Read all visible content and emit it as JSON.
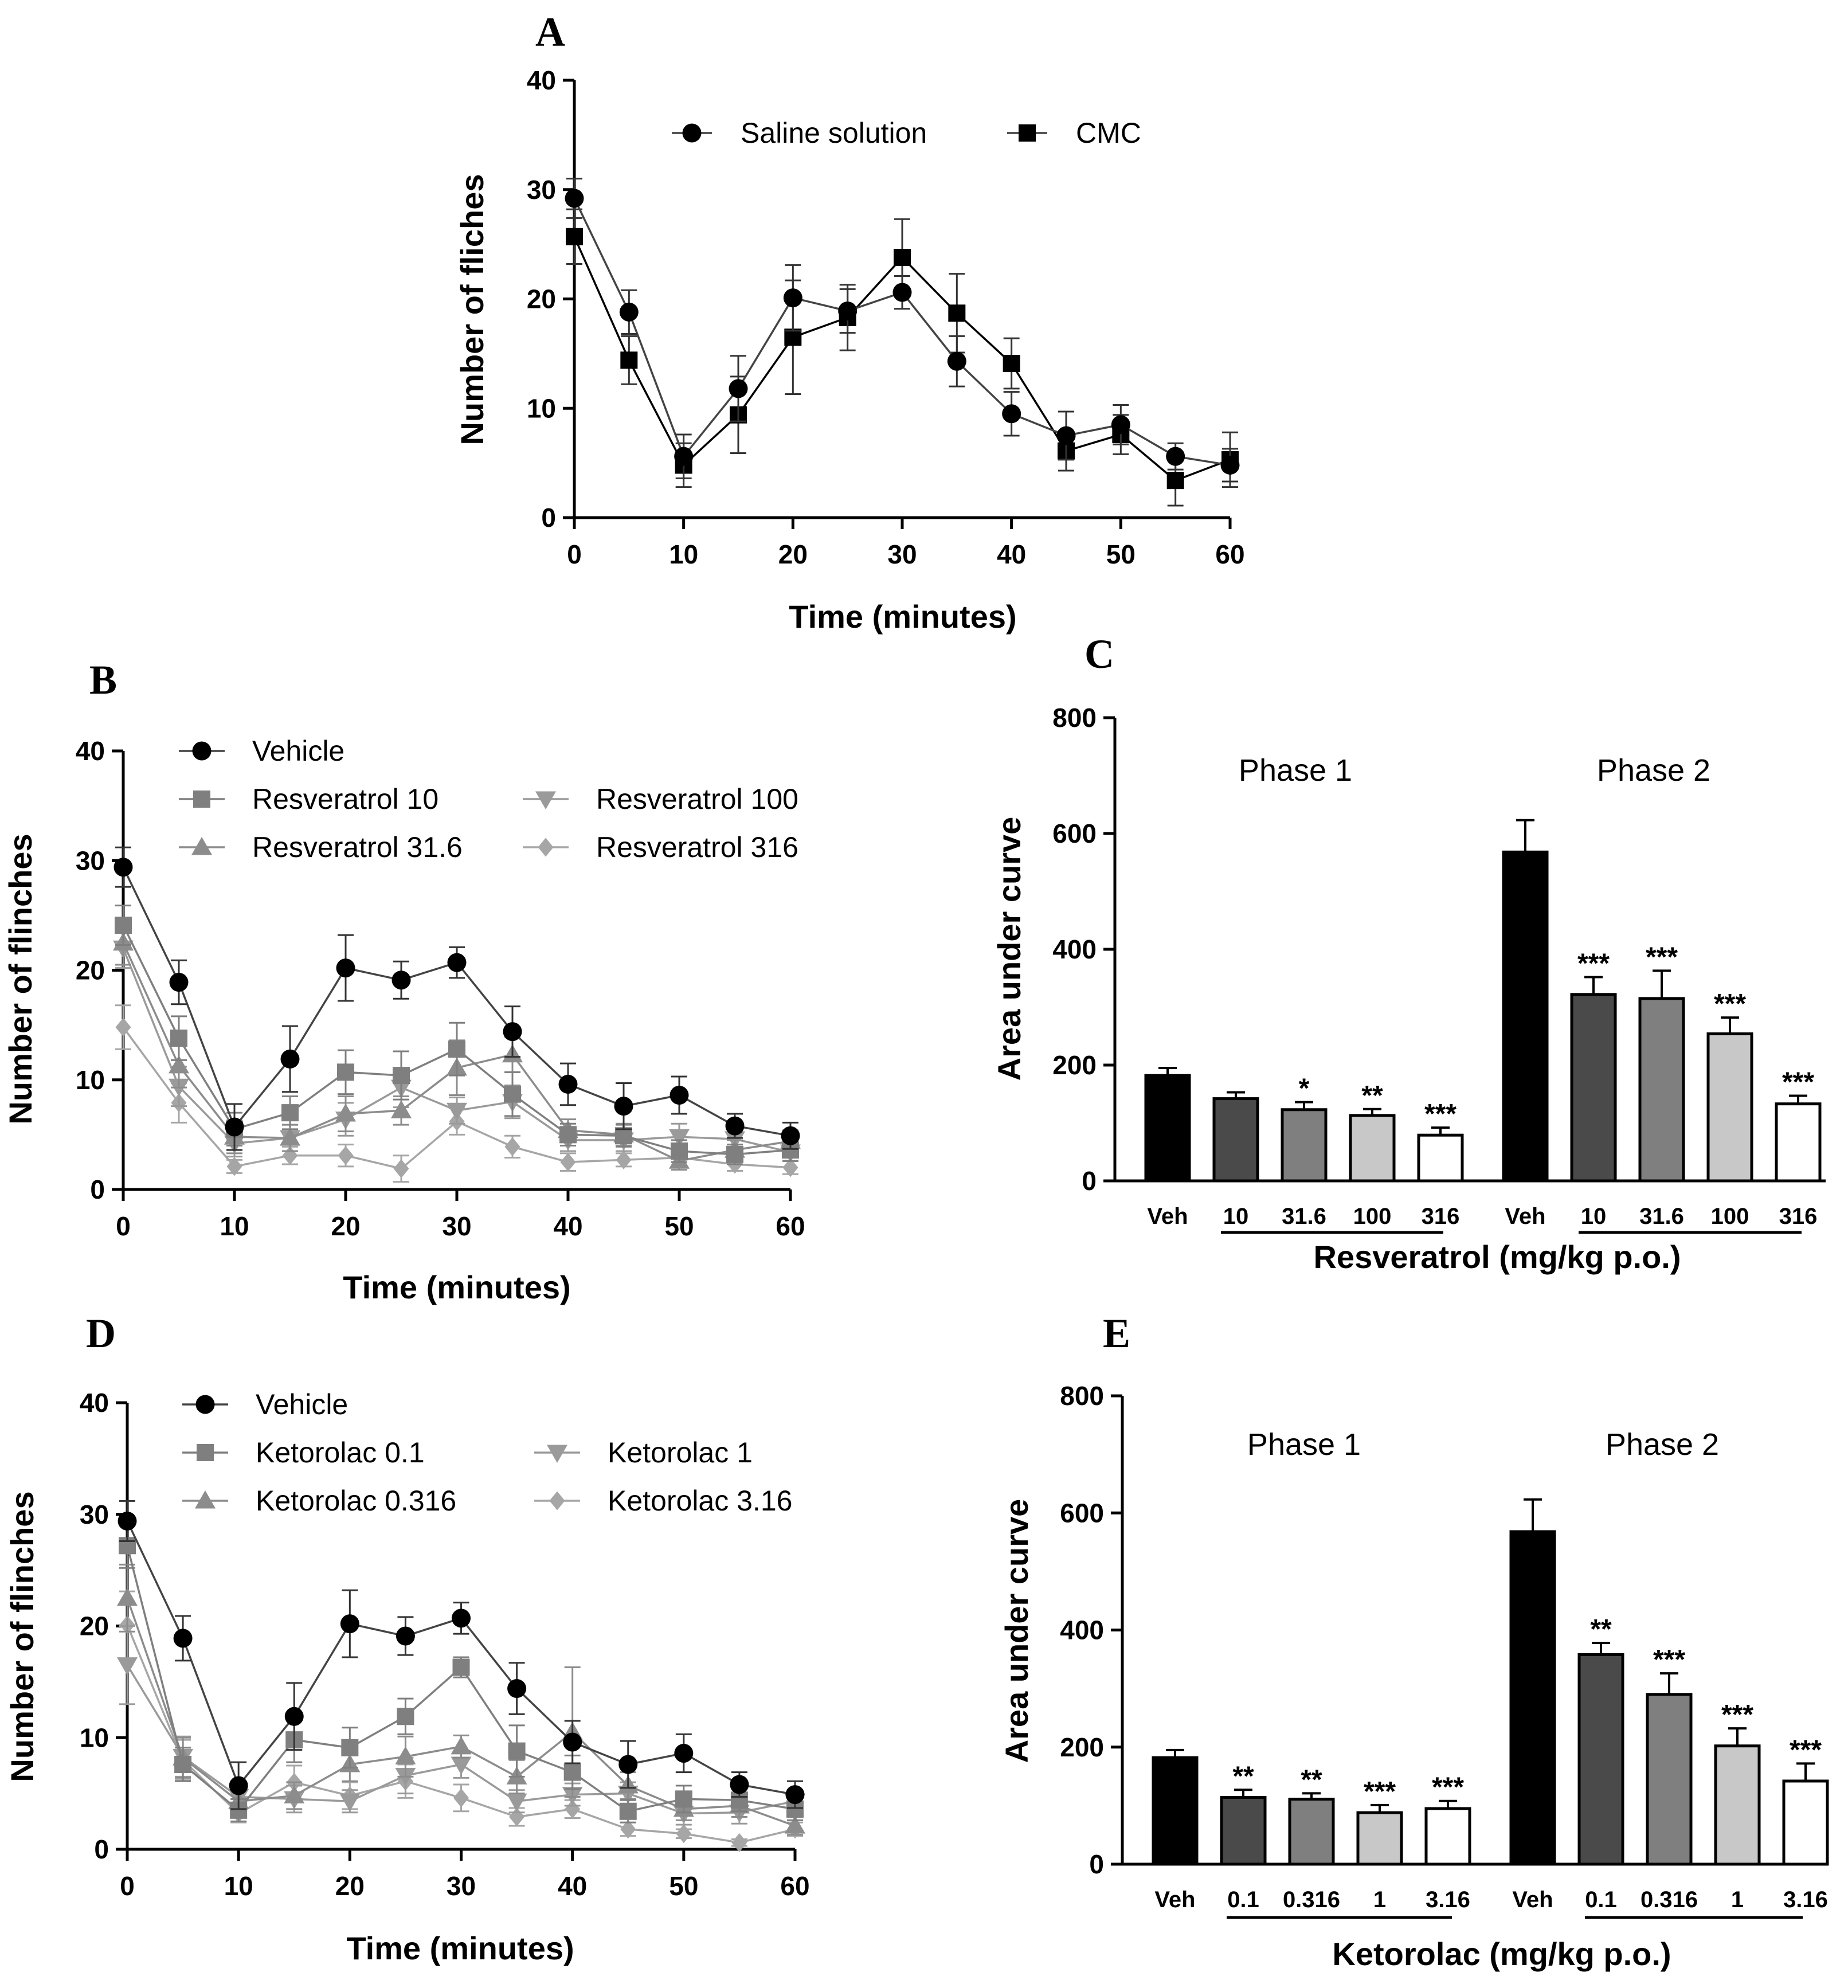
{
  "colors": {
    "black": "#000000",
    "dark_gray": "#4a4a4a",
    "mid_gray": "#7f7f7f",
    "light_gray": "#a6a6a6",
    "lighter_gray": "#c8c8c8",
    "white": "#ffffff",
    "line_gray": "#6e6e6e"
  },
  "chart_data": [
    {
      "panel": "A",
      "type": "line",
      "xlabel": "Time (minutes)",
      "ylabel": "Number of fliches",
      "xlim": [
        0,
        60
      ],
      "ylim": [
        0,
        40
      ],
      "xticks": [
        "0",
        "10",
        "20",
        "30",
        "40",
        "50",
        "60"
      ],
      "yticks": [
        "0",
        "10",
        "20",
        "30",
        "40"
      ],
      "x": [
        0,
        5,
        10,
        15,
        20,
        25,
        30,
        35,
        40,
        45,
        50,
        55,
        60
      ],
      "legend_position": "top",
      "series": [
        {
          "name": "Saline solution",
          "marker": "circle",
          "color": "#000000",
          "values": [
            29.2,
            18.8,
            5.6,
            11.8,
            20.1,
            18.9,
            20.6,
            14.3,
            9.5,
            7.5,
            8.5,
            5.6,
            4.8
          ],
          "errors": [
            1.8,
            2.0,
            2.0,
            3.0,
            3.0,
            2.0,
            1.5,
            2.3,
            2.0,
            2.2,
            1.8,
            1.2,
            1.5
          ]
        },
        {
          "name": "CMC",
          "marker": "square",
          "color": "#000000",
          "values": [
            25.7,
            14.4,
            4.8,
            9.4,
            16.5,
            18.3,
            23.8,
            18.7,
            14.1,
            6.1,
            7.6,
            3.4,
            5.3
          ],
          "errors": [
            2.5,
            2.2,
            2.0,
            3.5,
            5.2,
            3.0,
            3.5,
            3.6,
            2.3,
            1.8,
            1.8,
            2.3,
            2.5
          ]
        }
      ]
    },
    {
      "panel": "B",
      "type": "line",
      "xlabel": "Time (minutes)",
      "ylabel": "Number of flinches",
      "xlim": [
        0,
        60
      ],
      "ylim": [
        0,
        40
      ],
      "xticks": [
        "0",
        "10",
        "20",
        "30",
        "40",
        "50",
        "60"
      ],
      "yticks": [
        "0",
        "10",
        "20",
        "30",
        "40"
      ],
      "x": [
        0,
        5,
        10,
        15,
        20,
        25,
        30,
        35,
        40,
        45,
        50,
        55,
        60
      ],
      "legend_position": "top",
      "series": [
        {
          "name": "Vehicle",
          "marker": "circle",
          "color": "#000000",
          "values": [
            29.4,
            18.9,
            5.7,
            11.9,
            20.2,
            19.1,
            20.7,
            14.4,
            9.6,
            7.6,
            8.6,
            5.8,
            4.9
          ],
          "errors": [
            1.8,
            2.0,
            2.1,
            3.0,
            3.0,
            1.7,
            1.4,
            2.3,
            1.9,
            2.1,
            1.7,
            1.1,
            1.2
          ]
        },
        {
          "name": "Resveratrol 10",
          "marker": "square",
          "color": "#7f7f7f",
          "values": [
            24.1,
            13.8,
            5.5,
            7.0,
            10.7,
            10.4,
            12.8,
            8.7,
            5.0,
            4.9,
            3.5,
            3.2,
            3.6
          ],
          "errors": [
            1.8,
            2.0,
            1.5,
            1.5,
            2.0,
            2.2,
            2.4,
            2.0,
            1.0,
            1.0,
            1.0,
            0.9,
            1.0
          ]
        },
        {
          "name": "Resveratrol 31.6",
          "marker": "triangle-up",
          "color": "#8c8c8c",
          "values": [
            22.5,
            11.3,
            4.8,
            4.7,
            6.9,
            7.2,
            11.1,
            12.3,
            5.4,
            5.0,
            2.6,
            3.6,
            4.4
          ],
          "errors": [
            2.0,
            2.0,
            1.5,
            1.2,
            1.6,
            1.3,
            2.5,
            1.6,
            1.0,
            1.0,
            0.8,
            0.9,
            1.0
          ]
        },
        {
          "name": "Resveratrol 100",
          "marker": "triangle-down",
          "color": "#9a9a9a",
          "values": [
            22.0,
            9.4,
            4.2,
            4.7,
            6.4,
            9.3,
            7.2,
            8.0,
            4.5,
            4.5,
            4.8,
            4.6,
            3.4
          ],
          "errors": [
            1.8,
            1.8,
            1.2,
            1.2,
            1.5,
            1.8,
            1.2,
            1.5,
            1.0,
            1.0,
            1.2,
            1.0,
            0.8
          ]
        },
        {
          "name": "Resveratrol 316",
          "marker": "diamond",
          "color": "#a6a6a6",
          "values": [
            14.8,
            7.9,
            2.1,
            3.1,
            3.1,
            1.9,
            6.2,
            3.9,
            2.5,
            2.7,
            2.9,
            2.3,
            2.0
          ],
          "errors": [
            2.0,
            1.8,
            0.6,
            0.8,
            1.0,
            1.2,
            1.2,
            1.0,
            0.8,
            0.6,
            0.8,
            0.6,
            0.6
          ]
        }
      ]
    },
    {
      "panel": "C",
      "type": "bar",
      "ylabel": "Area under curve",
      "xlabel": "Resveratrol (mg/kg p.o.)",
      "ylim": [
        0,
        800
      ],
      "yticks": [
        "0",
        "200",
        "400",
        "600",
        "800"
      ],
      "phase_labels": [
        "Phase 1",
        "Phase 2"
      ],
      "categories": [
        "Veh",
        "10",
        "31.6",
        "100",
        "316"
      ],
      "bar_colors": [
        "#000000",
        "#4a4a4a",
        "#7f7f7f",
        "#c8c8c8",
        "#ffffff"
      ],
      "phases": [
        {
          "name": "Phase 1",
          "values": [
            182,
            142,
            123,
            113,
            79
          ],
          "errors": [
            13,
            11,
            13,
            11,
            13
          ],
          "significance": [
            "",
            "",
            "*",
            "**",
            "***"
          ]
        },
        {
          "name": "Phase 2",
          "values": [
            568,
            322,
            315,
            254,
            133
          ],
          "errors": [
            55,
            30,
            48,
            28,
            14
          ],
          "significance": [
            "",
            "***",
            "***",
            "***",
            "***"
          ]
        }
      ]
    },
    {
      "panel": "D",
      "type": "line",
      "xlabel": "Time (minutes)",
      "ylabel": "Number of flinches",
      "xlim": [
        0,
        60
      ],
      "ylim": [
        0,
        40
      ],
      "xticks": [
        "0",
        "10",
        "20",
        "30",
        "40",
        "50",
        "60"
      ],
      "yticks": [
        "0",
        "10",
        "20",
        "30",
        "40"
      ],
      "x": [
        0,
        5,
        10,
        15,
        20,
        25,
        30,
        35,
        40,
        45,
        50,
        55,
        60
      ],
      "legend_position": "top",
      "series": [
        {
          "name": "Vehicle",
          "marker": "circle",
          "color": "#000000",
          "values": [
            29.4,
            18.9,
            5.7,
            11.9,
            20.2,
            19.1,
            20.7,
            14.4,
            9.6,
            7.6,
            8.6,
            5.8,
            4.9
          ],
          "errors": [
            1.8,
            2.0,
            2.1,
            3.0,
            3.0,
            1.7,
            1.4,
            2.3,
            1.9,
            2.1,
            1.7,
            1.1,
            1.2
          ]
        },
        {
          "name": "Ketorolac 0.1",
          "marker": "square",
          "color": "#7f7f7f",
          "values": [
            27.2,
            7.6,
            3.5,
            9.8,
            9.1,
            11.9,
            16.3,
            8.8,
            6.9,
            3.4,
            4.5,
            4.4,
            3.6
          ],
          "errors": [
            2.0,
            1.5,
            1.0,
            2.0,
            1.8,
            1.6,
            0.9,
            2.3,
            1.5,
            1.0,
            1.2,
            1.0,
            1.0
          ]
        },
        {
          "name": "Ketorolac 0.316",
          "marker": "triangle-up",
          "color": "#8c8c8c",
          "values": [
            22.5,
            8.2,
            4.3,
            4.8,
            7.6,
            8.3,
            9.2,
            6.5,
            10.5,
            5.7,
            3.6,
            3.9,
            2.1
          ],
          "errors": [
            3.0,
            1.8,
            1.2,
            1.2,
            1.5,
            1.8,
            1.0,
            1.5,
            5.8,
            1.2,
            1.0,
            1.0,
            0.8
          ]
        },
        {
          "name": "Ketorolac 1",
          "marker": "triangle-down",
          "color": "#9a9a9a",
          "values": [
            16.5,
            8.3,
            4.7,
            4.5,
            4.3,
            6.6,
            7.6,
            4.3,
            4.9,
            5.0,
            3.2,
            3.3,
            4.3
          ],
          "errors": [
            3.5,
            1.8,
            1.2,
            1.2,
            1.0,
            1.6,
            1.2,
            1.0,
            1.0,
            1.0,
            1.0,
            1.0,
            1.0
          ]
        },
        {
          "name": "Ketorolac 3.16",
          "marker": "diamond",
          "color": "#a6a6a6",
          "values": [
            20.1,
            8.0,
            3.2,
            6.0,
            4.8,
            6.1,
            4.6,
            2.9,
            3.6,
            1.8,
            1.4,
            0.6,
            1.8
          ],
          "errors": [
            3.0,
            1.8,
            0.8,
            1.5,
            1.2,
            1.5,
            1.2,
            0.8,
            0.8,
            0.6,
            0.4,
            0.3,
            0.6
          ]
        }
      ]
    },
    {
      "panel": "E",
      "type": "bar",
      "ylabel": "Area under curve",
      "xlabel": "Ketorolac (mg/kg p.o.)",
      "ylim": [
        0,
        800
      ],
      "yticks": [
        "0",
        "200",
        "400",
        "600",
        "800"
      ],
      "phase_labels": [
        "Phase 1",
        "Phase 2"
      ],
      "categories": [
        "Veh",
        "0.1",
        "0.316",
        "1",
        "3.16"
      ],
      "bar_colors": [
        "#000000",
        "#4a4a4a",
        "#7f7f7f",
        "#c8c8c8",
        "#ffffff"
      ],
      "phases": [
        {
          "name": "Phase 1",
          "values": [
            182,
            114,
            111,
            88,
            95
          ],
          "errors": [
            13,
            13,
            10,
            13,
            13
          ],
          "significance": [
            "",
            "**",
            "**",
            "***",
            "***"
          ]
        },
        {
          "name": "Phase 2",
          "values": [
            568,
            358,
            290,
            202,
            142
          ],
          "errors": [
            55,
            20,
            36,
            30,
            30
          ],
          "significance": [
            "",
            "**",
            "***",
            "***",
            "***"
          ]
        }
      ]
    }
  ]
}
